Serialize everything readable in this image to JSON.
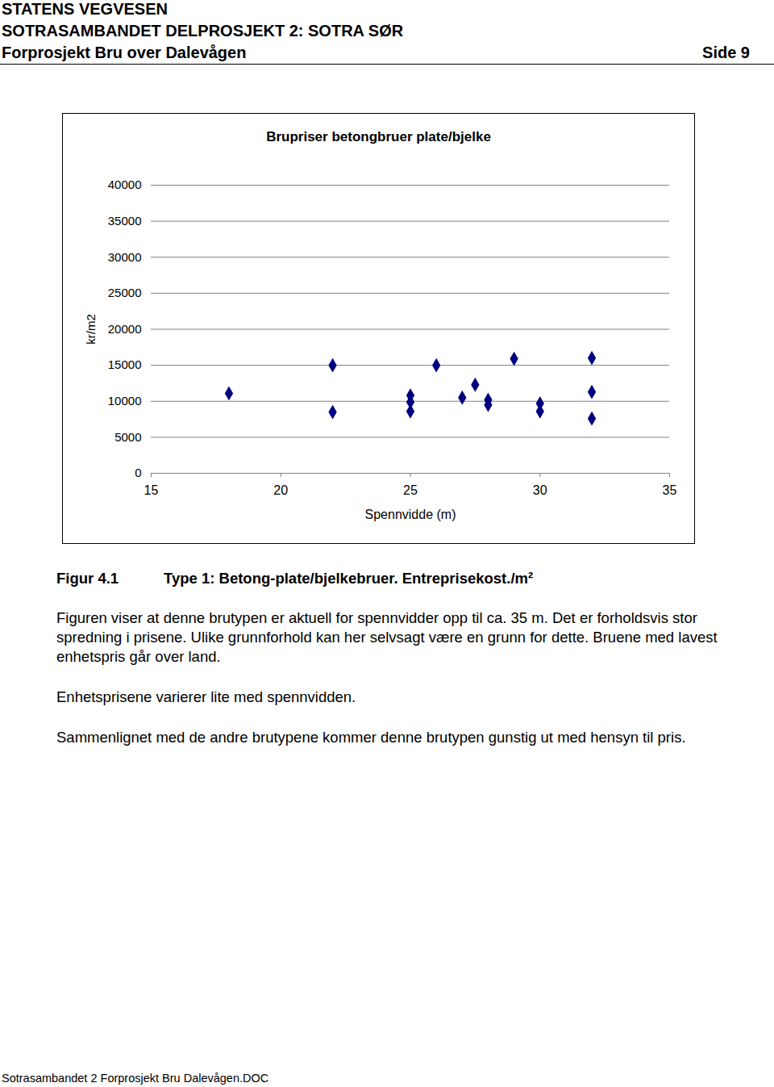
{
  "header": {
    "lines": [
      "STATENS VEGVESEN",
      "SOTRASAMBANDET DELPROSJEKT 2: SOTRA SØR"
    ],
    "left": "Forprosjekt Bru over Dalevågen",
    "right": "Side 9"
  },
  "chart_data": {
    "type": "scatter",
    "title": "Brupriser betongbruer plate/bjelke",
    "x_label": "Spennvidde (m)",
    "y_label": "kr/m2",
    "x": [
      18,
      22,
      22,
      25,
      25,
      25,
      26,
      27,
      27.5,
      28,
      28,
      29,
      30,
      30,
      32,
      32,
      32
    ],
    "values": [
      11100,
      15000,
      8500,
      10800,
      9900,
      8600,
      15000,
      10500,
      12300,
      10200,
      9500,
      15900,
      9700,
      8600,
      16000,
      11300,
      7600
    ],
    "color": "#000080",
    "marker": "diamond",
    "xlim": [
      15,
      35
    ],
    "xticks": [
      15,
      20,
      25,
      30,
      35
    ],
    "ylim": [
      0,
      40000
    ],
    "yticks": [
      0,
      5000,
      10000,
      15000,
      20000,
      25000,
      30000,
      35000,
      40000
    ],
    "grid": true
  },
  "caption": {
    "label": "Figur 4.1",
    "text": "Type 1: Betong-plate/bjelkebruer. Entreprisekost./m²"
  },
  "paragraphs": [
    "Figuren viser at denne brutypen er aktuell for spennvidder opp til ca. 35 m. Det er forholdsvis stor spredning i prisene. Ulike grunnforhold kan her selvsagt være en grunn for dette. Bruene med lavest enhetspris går over land.",
    "Enhetsprisene varierer lite med spennvidden.",
    "Sammenlignet med de andre brutypene kommer denne brutypen gunstig ut med hensyn til pris."
  ],
  "footer": "Sotrasambandet 2 Forprosjekt Bru Dalevågen.DOC"
}
